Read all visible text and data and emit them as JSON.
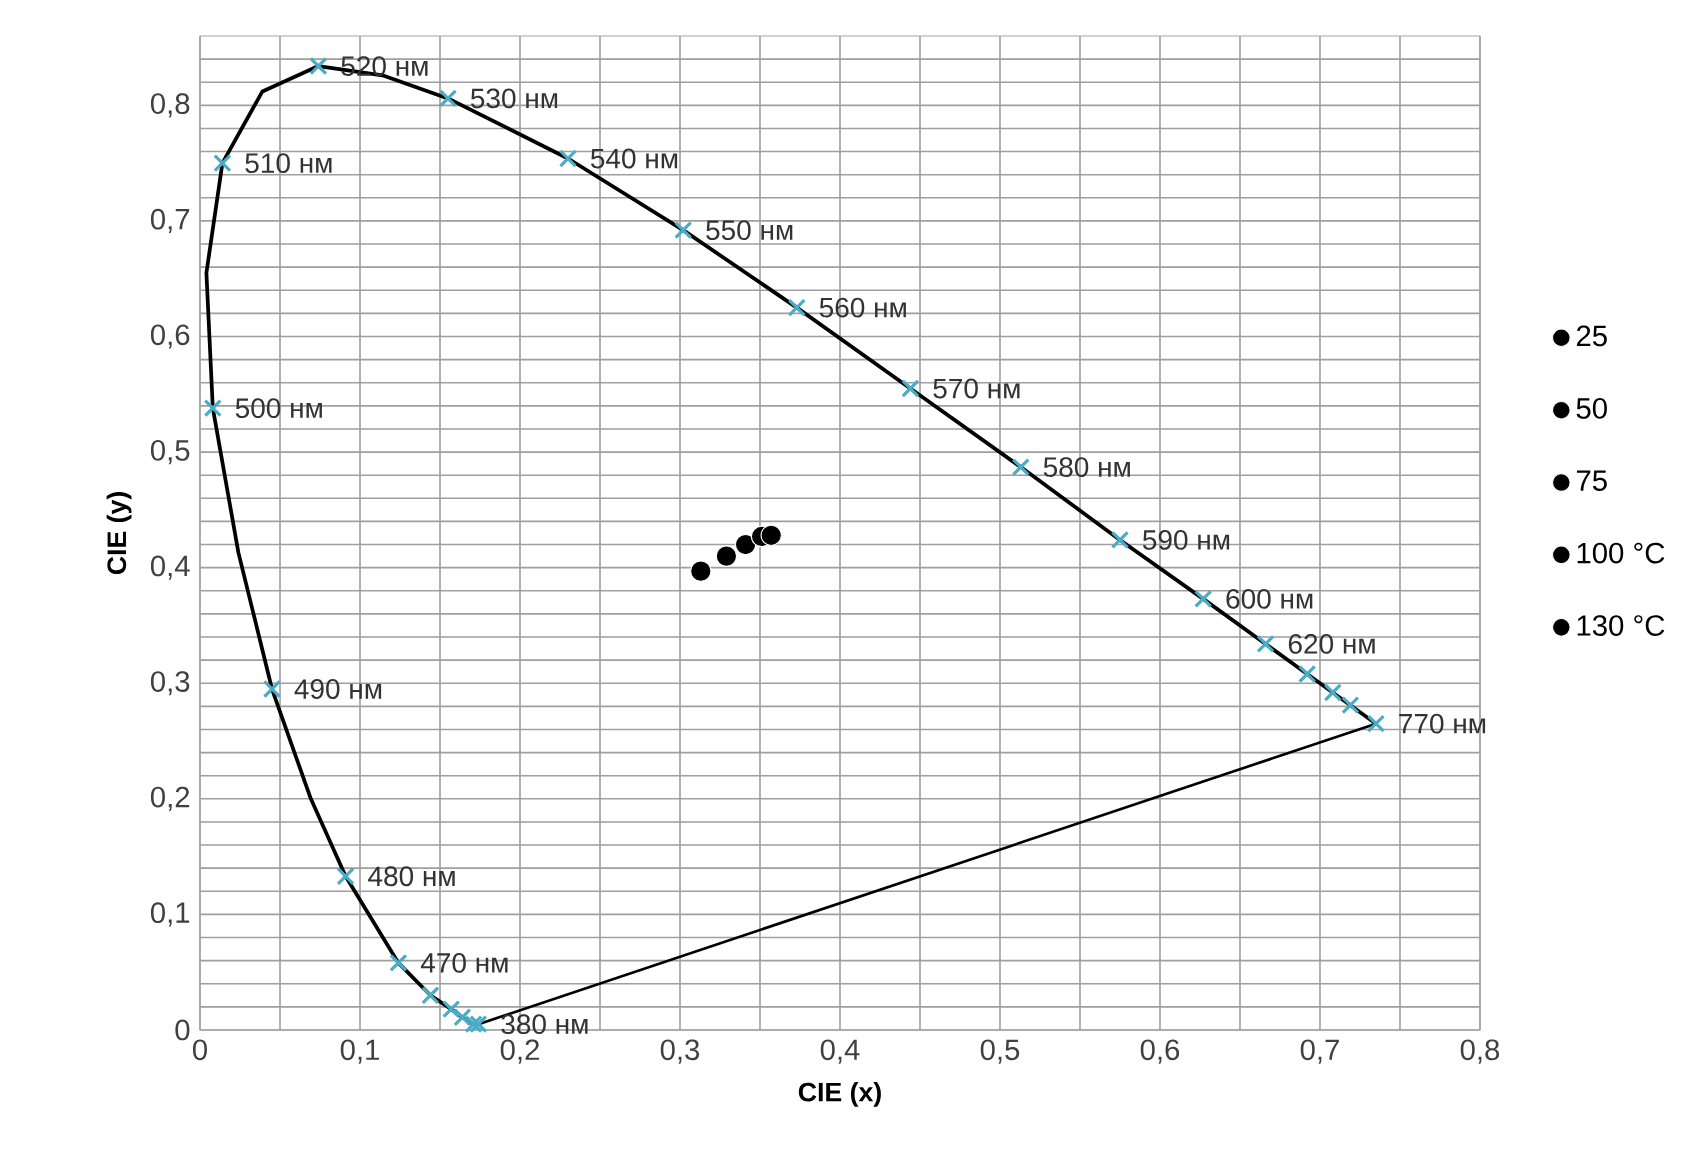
{
  "chart_data": {
    "type": "scatter",
    "xlabel": "CIE (x)",
    "ylabel": "CIE (y)",
    "xlim": [
      0,
      0.8
    ],
    "ylim": [
      0,
      0.86
    ],
    "xticks": [
      0,
      {
        "value": 0.05,
        "label": null
      },
      {
        "value": 0.1,
        "label": "0,1"
      },
      {
        "value": 0.15,
        "label": null
      },
      {
        "value": 0.2,
        "label": "0,2"
      },
      {
        "value": 0.25,
        "label": null
      },
      {
        "value": 0.3,
        "label": "0,3"
      },
      {
        "value": 0.35,
        "label": null
      },
      {
        "value": 0.4,
        "label": "0,4"
      },
      {
        "value": 0.45,
        "label": null
      },
      {
        "value": 0.5,
        "label": "0,5"
      },
      {
        "value": 0.55,
        "label": null
      },
      {
        "value": 0.6,
        "label": "0,6"
      },
      {
        "value": 0.65,
        "label": null
      },
      {
        "value": 0.7,
        "label": "0,7"
      },
      {
        "value": 0.75,
        "label": null
      },
      {
        "value": 0.8,
        "label": "0,8"
      }
    ],
    "yticks": [
      0,
      {
        "value": 0.02,
        "label": null
      },
      {
        "value": 0.04,
        "label": null
      },
      {
        "value": 0.06,
        "label": null
      },
      {
        "value": 0.08,
        "label": null
      },
      {
        "value": 0.1,
        "label": "0,1"
      },
      {
        "value": 0.12,
        "label": null
      },
      {
        "value": 0.14,
        "label": null
      },
      {
        "value": 0.16,
        "label": null
      },
      {
        "value": 0.18,
        "label": null
      },
      {
        "value": 0.2,
        "label": "0,2"
      },
      {
        "value": 0.22,
        "label": null
      },
      {
        "value": 0.24,
        "label": null
      },
      {
        "value": 0.26,
        "label": null
      },
      {
        "value": 0.28,
        "label": null
      },
      {
        "value": 0.3,
        "label": "0,3"
      },
      {
        "value": 0.32,
        "label": null
      },
      {
        "value": 0.34,
        "label": null
      },
      {
        "value": 0.36,
        "label": null
      },
      {
        "value": 0.38,
        "label": null
      },
      {
        "value": 0.4,
        "label": "0,4"
      },
      {
        "value": 0.42,
        "label": null
      },
      {
        "value": 0.44,
        "label": null
      },
      {
        "value": 0.46,
        "label": null
      },
      {
        "value": 0.48,
        "label": null
      },
      {
        "value": 0.5,
        "label": "0,5"
      },
      {
        "value": 0.52,
        "label": null
      },
      {
        "value": 0.54,
        "label": null
      },
      {
        "value": 0.56,
        "label": null
      },
      {
        "value": 0.58,
        "label": null
      },
      {
        "value": 0.6,
        "label": "0,6"
      },
      {
        "value": 0.62,
        "label": null
      },
      {
        "value": 0.64,
        "label": null
      },
      {
        "value": 0.66,
        "label": null
      },
      {
        "value": 0.68,
        "label": null
      },
      {
        "value": 0.7,
        "label": "0,7"
      },
      {
        "value": 0.72,
        "label": null
      },
      {
        "value": 0.74,
        "label": null
      },
      {
        "value": 0.76,
        "label": null
      },
      {
        "value": 0.78,
        "label": null
      },
      {
        "value": 0.8,
        "label": "0,8"
      },
      {
        "value": 0.82,
        "label": null
      },
      {
        "value": 0.84,
        "label": null
      }
    ],
    "grid": true,
    "legend": "right",
    "series": [
      {
        "type": "line",
        "color": "#000000",
        "marker": "none",
        "x": [
          0.174,
          0.171,
          0.164,
          0.157,
          0.144,
          0.124,
          0.091,
          0.069,
          0.045,
          0.024,
          0.008,
          0.004,
          0.014,
          0.039,
          0.074,
          0.114,
          0.155,
          0.23,
          0.302,
          0.373,
          0.444,
          0.513,
          0.575,
          0.627,
          0.666,
          0.692,
          0.708,
          0.719,
          0.735
        ],
        "values": [
          0.005,
          0.005,
          0.011,
          0.018,
          0.03,
          0.058,
          0.133,
          0.201,
          0.295,
          0.413,
          0.538,
          0.655,
          0.75,
          0.812,
          0.834,
          0.826,
          0.806,
          0.754,
          0.692,
          0.625,
          0.555,
          0.487,
          0.424,
          0.373,
          0.334,
          0.308,
          0.292,
          0.281,
          0.265
        ]
      },
      {
        "color": "#4bacc6",
        "marker": "cross",
        "x": [
          0.174,
          0.171,
          0.164,
          0.157,
          0.144,
          0.124,
          0.091,
          0.045,
          0.008,
          0.014,
          0.074,
          0.155,
          0.23,
          0.302,
          0.373,
          0.444,
          0.513,
          0.575,
          0.627,
          0.666,
          0.692,
          0.708,
          0.719,
          0.735
        ],
        "values": [
          0.005,
          0.005,
          0.011,
          0.018,
          0.03,
          0.058,
          0.133,
          0.295,
          0.538,
          0.75,
          0.834,
          0.806,
          0.754,
          0.692,
          0.625,
          0.555,
          0.487,
          0.424,
          0.373,
          0.334,
          0.308,
          0.292,
          0.281,
          0.265
        ]
      },
      {
        "name": "25",
        "color": "#000000",
        "marker": "circle",
        "x": [
          0.313
        ],
        "values": [
          0.397
        ]
      },
      {
        "name": "50",
        "color": "#000000",
        "marker": "circle",
        "x": [
          0.329
        ],
        "values": [
          0.41
        ]
      },
      {
        "name": "75",
        "color": "#000000",
        "marker": "circle",
        "x": [
          0.341
        ],
        "values": [
          0.42
        ]
      },
      {
        "name": "100 °C",
        "color": "#000000",
        "marker": "circle",
        "x": [
          0.351
        ],
        "values": [
          0.427
        ]
      },
      {
        "name": "130 °C",
        "color": "#000000",
        "marker": "circle",
        "x": [
          0.357
        ],
        "values": [
          0.428
        ]
      }
    ],
    "annotations": [
      {
        "text": "380 нм",
        "x": 0.174,
        "y": 0.005
      },
      {
        "text": "470 нм",
        "x": 0.124,
        "y": 0.058
      },
      {
        "text": "480 нм",
        "x": 0.091,
        "y": 0.133
      },
      {
        "text": "490 нм",
        "x": 0.045,
        "y": 0.295
      },
      {
        "text": "500 нм",
        "x": 0.008,
        "y": 0.538
      },
      {
        "text": "510 нм",
        "x": 0.014,
        "y": 0.75
      },
      {
        "text": "520 нм",
        "x": 0.074,
        "y": 0.834
      },
      {
        "text": "530 нм",
        "x": 0.155,
        "y": 0.806
      },
      {
        "text": "540 нм",
        "x": 0.23,
        "y": 0.754
      },
      {
        "text": "550 нм",
        "x": 0.302,
        "y": 0.692
      },
      {
        "text": "560 нм",
        "x": 0.373,
        "y": 0.625
      },
      {
        "text": "570 нм",
        "x": 0.444,
        "y": 0.555
      },
      {
        "text": "580 нм",
        "x": 0.513,
        "y": 0.487
      },
      {
        "text": "590 нм",
        "x": 0.575,
        "y": 0.424
      },
      {
        "text": "600 нм",
        "x": 0.627,
        "y": 0.373
      },
      {
        "text": "620 нм",
        "x": 0.666,
        "y": 0.334
      },
      {
        "text": "770 нм",
        "x": 0.735,
        "y": 0.265
      }
    ]
  }
}
